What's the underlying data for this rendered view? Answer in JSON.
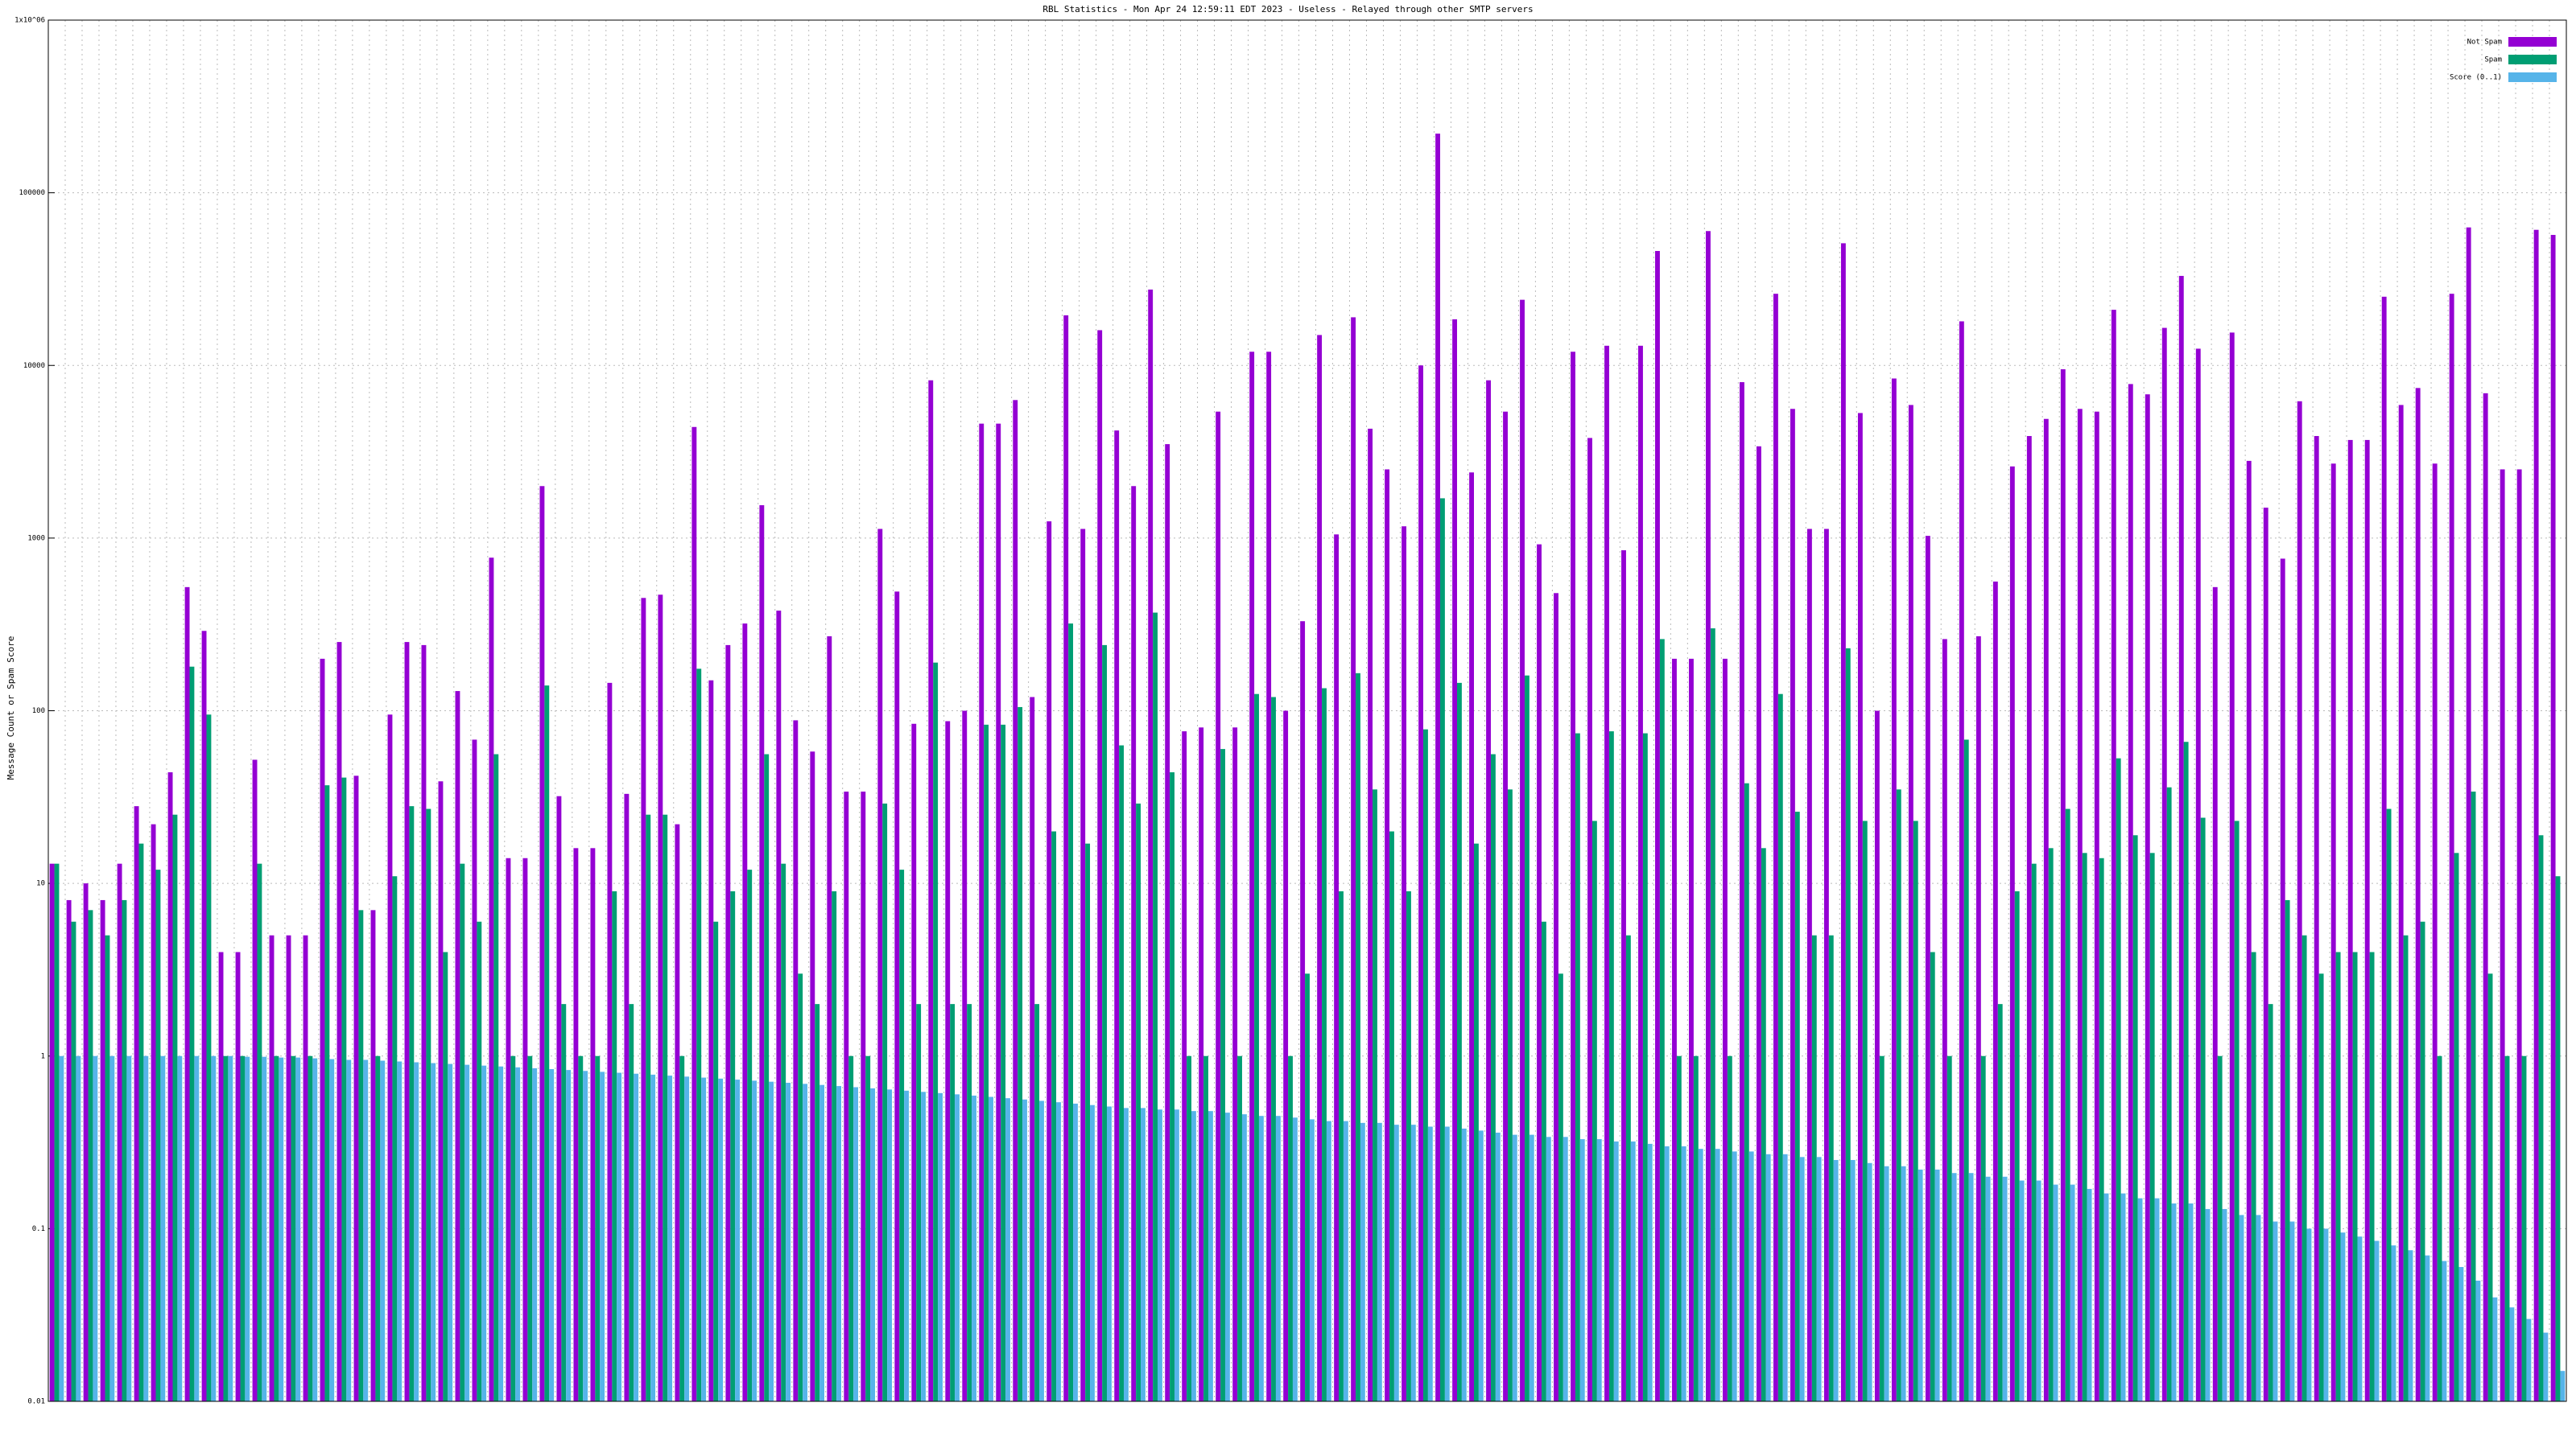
{
  "chart_data": {
    "type": "bar",
    "title": "RBL Statistics - Mon Apr 24 12:59:11 EDT 2023 - Useless - Relayed through other SMTP servers",
    "y_label": "Message Count or Spam Score",
    "log_y": true,
    "grid": true,
    "legend": "top-right",
    "ylim": [
      0.01,
      1000000
    ],
    "yticks": [
      0.01,
      0.1,
      1,
      10,
      100,
      1000,
      10000,
      100000,
      {
        "value": 1000000,
        "label": "1x10^06"
      }
    ],
    "series": [
      {
        "name": "Not Spam",
        "color": "#9400d3",
        "values": [
          13,
          8,
          10,
          8,
          13,
          28,
          22,
          44,
          520,
          290,
          4,
          4,
          52,
          5,
          5,
          5,
          200,
          250,
          42,
          7,
          95,
          250,
          240,
          39,
          130,
          68,
          770,
          14,
          14,
          2000,
          32,
          16,
          16,
          145,
          33,
          450,
          470,
          22,
          4400,
          150,
          240,
          320,
          1550,
          380,
          88,
          58,
          270,
          34,
          34,
          1130,
          490,
          84,
          8200,
          87,
          100,
          4600,
          4600,
          6300,
          120,
          1250,
          19500,
          1130,
          16000,
          4200,
          2000,
          27500,
          3500,
          76,
          80,
          5400,
          80,
          12000,
          12000,
          100,
          330,
          15000,
          1050,
          19000,
          4300,
          2500,
          1170,
          10000,
          220000,
          18500,
          2400,
          8200,
          5400,
          24000,
          920,
          480,
          12000,
          3800,
          13000,
          850,
          13000,
          46000,
          200,
          200,
          60000,
          200,
          8000,
          3400,
          26000,
          5600,
          1130,
          1130,
          51000,
          5300,
          100,
          8400,
          5900,
          1030,
          260,
          18000,
          270,
          560,
          2600,
          3900,
          4900,
          9500,
          5600,
          5400,
          21000,
          7800,
          6800,
          16500,
          33000,
          12500,
          520,
          15500,
          2800,
          1500,
          760,
          6200,
          3900,
          2700,
          3700,
          3700,
          25000,
          5900,
          7400,
          2700,
          26000,
          63000,
          6900,
          2500,
          2500,
          61000,
          57000
        ]
      },
      {
        "name": "Spam",
        "color": "#009e73",
        "values": [
          13,
          6,
          7,
          5,
          8,
          17,
          12,
          25,
          180,
          95,
          1,
          1,
          13,
          1,
          1,
          1,
          37,
          41,
          7,
          1,
          11,
          28,
          27,
          4,
          13,
          6,
          56,
          1,
          1,
          140,
          2,
          1,
          1,
          9,
          2,
          25,
          25,
          1,
          175,
          6,
          9,
          12,
          56,
          13,
          3,
          2,
          9,
          1,
          1,
          29,
          12,
          2,
          190,
          2,
          2,
          83,
          83,
          105,
          2,
          20,
          320,
          17,
          240,
          63,
          29,
          370,
          44,
          1,
          1,
          60,
          1,
          125,
          120,
          1,
          3,
          135,
          9,
          165,
          35,
          20,
          9,
          78,
          1700,
          145,
          17,
          56,
          35,
          160,
          6,
          3,
          74,
          23,
          76,
          5,
          74,
          260,
          1,
          1,
          300,
          1,
          38,
          16,
          125,
          26,
          5,
          5,
          230,
          23,
          1,
          35,
          23,
          4,
          1,
          68,
          1,
          2,
          9,
          13,
          16,
          27,
          15,
          14,
          53,
          19,
          15,
          36,
          66,
          24,
          1,
          23,
          4,
          2,
          8,
          5,
          3,
          4,
          4,
          4,
          27,
          5,
          6,
          1,
          15,
          34,
          3,
          1,
          1,
          19,
          11
        ]
      },
      {
        "name": "Score (0..1)",
        "color": "#56b4e9",
        "values": [
          1,
          1,
          1,
          1,
          1,
          1,
          1,
          1,
          1,
          1,
          1,
          0.99,
          0.99,
          0.98,
          0.98,
          0.97,
          0.96,
          0.95,
          0.95,
          0.94,
          0.93,
          0.92,
          0.91,
          0.9,
          0.89,
          0.88,
          0.87,
          0.86,
          0.85,
          0.84,
          0.83,
          0.82,
          0.81,
          0.8,
          0.79,
          0.78,
          0.77,
          0.76,
          0.75,
          0.74,
          0.73,
          0.72,
          0.71,
          0.7,
          0.69,
          0.68,
          0.67,
          0.66,
          0.65,
          0.64,
          0.63,
          0.62,
          0.61,
          0.6,
          0.59,
          0.58,
          0.57,
          0.56,
          0.55,
          0.54,
          0.53,
          0.52,
          0.51,
          0.5,
          0.5,
          0.49,
          0.49,
          0.48,
          0.48,
          0.47,
          0.46,
          0.45,
          0.45,
          0.44,
          0.43,
          0.42,
          0.42,
          0.41,
          0.41,
          0.4,
          0.4,
          0.39,
          0.39,
          0.38,
          0.37,
          0.36,
          0.35,
          0.35,
          0.34,
          0.34,
          0.33,
          0.33,
          0.32,
          0.32,
          0.31,
          0.3,
          0.3,
          0.29,
          0.29,
          0.28,
          0.28,
          0.27,
          0.27,
          0.26,
          0.26,
          0.25,
          0.25,
          0.24,
          0.23,
          0.23,
          0.22,
          0.22,
          0.21,
          0.21,
          0.2,
          0.2,
          0.19,
          0.19,
          0.18,
          0.18,
          0.17,
          0.16,
          0.16,
          0.15,
          0.15,
          0.14,
          0.14,
          0.13,
          0.13,
          0.12,
          0.12,
          0.11,
          0.11,
          0.1,
          0.1,
          0.095,
          0.09,
          0.085,
          0.08,
          0.075,
          0.07,
          0.065,
          0.06,
          0.05,
          0.04,
          0.035,
          0.03,
          0.025,
          0.015
        ]
      }
    ]
  }
}
